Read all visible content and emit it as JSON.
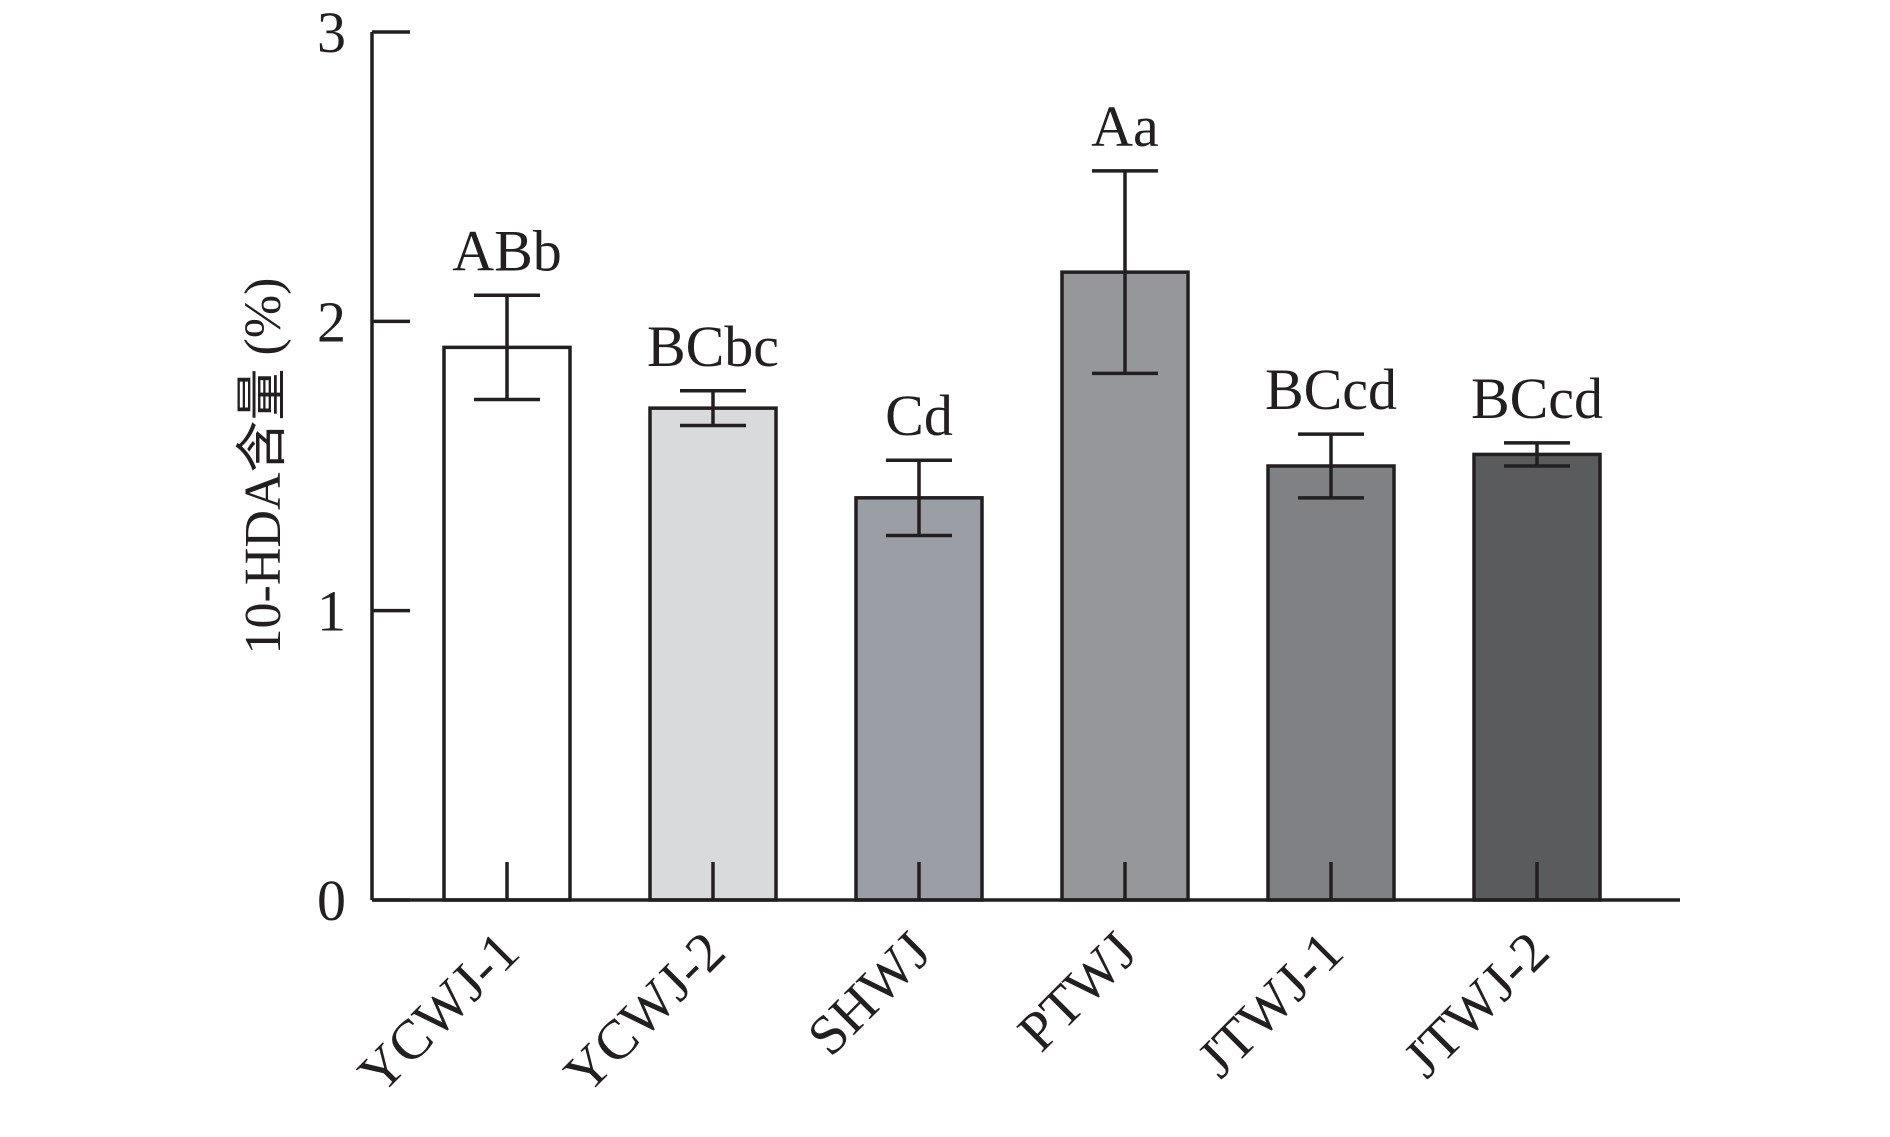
{
  "chart_data": {
    "type": "bar",
    "ylabel": "10-HDA含量 (%)",
    "xlabel": "",
    "ylim": [
      0,
      3
    ],
    "yticks": [
      "0",
      "1",
      "2",
      "3"
    ],
    "categories": [
      "YCWJ-1",
      "YCWJ-2",
      "SHWJ",
      "PTWJ",
      "JTWJ-1",
      "JTWJ-2"
    ],
    "values": [
      1.91,
      1.7,
      1.39,
      2.17,
      1.5,
      1.54
    ],
    "errors": [
      0.18,
      0.06,
      0.13,
      0.35,
      0.11,
      0.04
    ],
    "significance": [
      "ABb",
      "BCbc",
      "Cd",
      "Aa",
      "BCcd",
      "BCcd"
    ],
    "bar_colors": [
      "#ffffff",
      "#d9dadc",
      "#9b9ea4",
      "#96979b",
      "#808184",
      "#5a5b5d"
    ],
    "grid": false,
    "legend": "none"
  }
}
